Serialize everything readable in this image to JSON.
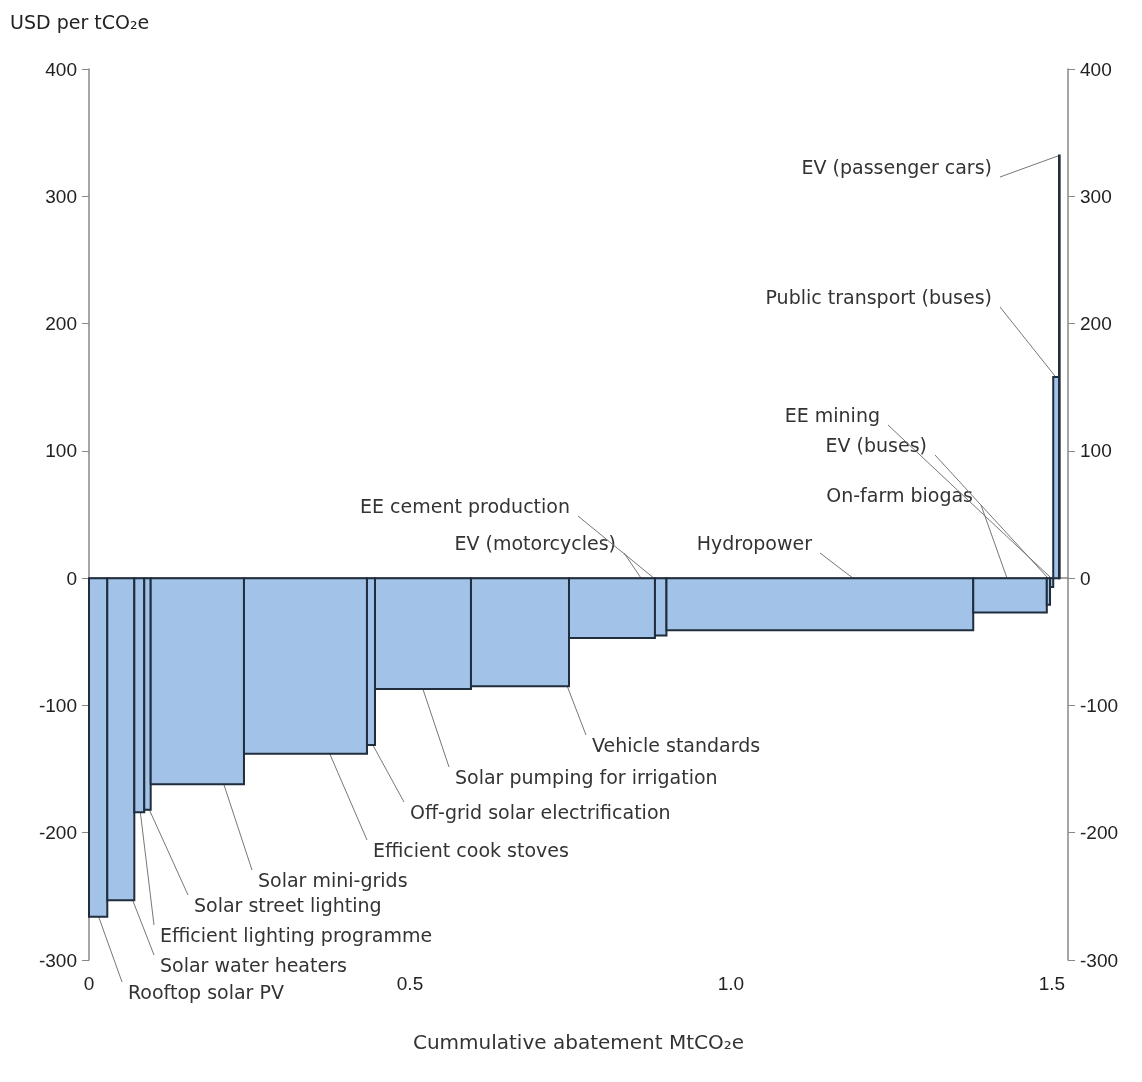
{
  "chart_data": {
    "type": "histogram",
    "ylabel": "USD per tCO₂e",
    "xlabel": "Cummulative abatement MtCO₂e",
    "bins": [
      0,
      0.0285,
      0.0706,
      0.0861,
      0.0961,
      0.2414,
      0.433,
      0.4455,
      0.595,
      0.7477,
      0.8816,
      0.8995,
      1.3774,
      1.492,
      1.497,
      1.502,
      1.511,
      1.512
    ],
    "values": [
      -266,
      -253,
      -184,
      -182,
      -162,
      -138,
      -131,
      -87,
      -85,
      -47,
      -45,
      -41,
      -27,
      -21,
      -7,
      158,
      332
    ],
    "color": "#a3c2e8",
    "xlim": [
      0,
      1.525
    ],
    "xticks": [
      0,
      0.5,
      {
        "value": 1,
        "label": "1.0"
      },
      1.5
    ],
    "ylim": [
      -300,
      400
    ],
    "yticks": [
      -300,
      -200,
      -100,
      0,
      100,
      200,
      300,
      400
    ],
    "y2lim": [
      -300,
      400
    ],
    "y2ticks": [
      -300,
      -200,
      -100,
      0,
      100,
      200,
      300,
      400
    ],
    "annotations": [
      {
        "text": "Rooftop solar PV",
        "x": 0.015,
        "y": -266
      },
      {
        "text": "Solar water heaters",
        "x": 0.068,
        "y": -253
      },
      {
        "text": "Efficient lighting programme",
        "x": 0.08,
        "y": -184
      },
      {
        "text": "Solar street lighting",
        "x": 0.094,
        "y": -182
      },
      {
        "text": "Solar mini-grids",
        "x": 0.21,
        "y": -162
      },
      {
        "text": "Efficient cook stoves",
        "x": 0.375,
        "y": -138
      },
      {
        "text": "Off-grid solar electrification",
        "x": 0.442,
        "y": -131
      },
      {
        "text": "Solar pumping for irrigation",
        "x": 0.52,
        "y": -87
      },
      {
        "text": "Vehicle standards",
        "x": 0.745,
        "y": -85
      },
      {
        "text": "EV (motorcycles)",
        "x": 0.86,
        "y": 0
      },
      {
        "text": "EE cement production",
        "x": 0.88,
        "y": 0
      },
      {
        "text": "Hydropower",
        "x": 1.19,
        "y": 0
      },
      {
        "text": "On-farm biogas",
        "x": 1.43,
        "y": 0
      },
      {
        "text": "EV (buses)",
        "x": 1.494,
        "y": 0
      },
      {
        "text": "EE mining",
        "x": 1.499,
        "y": 0
      },
      {
        "text": "Public transport (buses)",
        "x": 1.506,
        "y": 158
      },
      {
        "text": "EV (passenger cars)",
        "x": 1.511,
        "y": 332
      }
    ]
  }
}
